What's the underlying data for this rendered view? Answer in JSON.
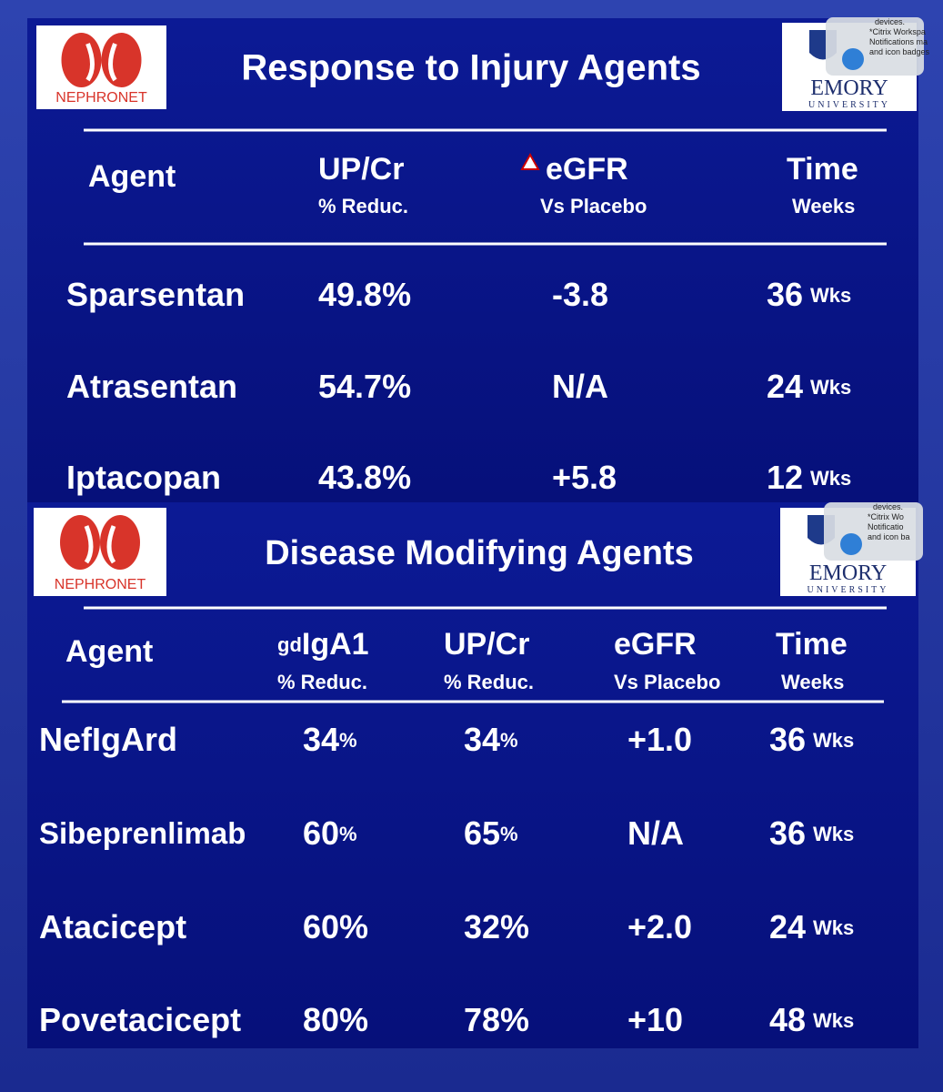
{
  "slides": [
    {
      "logo_left": "NEPHRONET",
      "logo_right": {
        "name": "EMORY",
        "sub": "UNIVERSITY"
      },
      "notification": [
        "devices.",
        "*Citrix Workspa",
        "Notifications ma",
        "and icon badges"
      ],
      "title": "Response to Injury Agents",
      "table": {
        "header": [
          {
            "main": "Agent"
          },
          {
            "main": "UP/Cr",
            "sub": "% Reduc."
          },
          {
            "main": "eGFR",
            "sub": "Vs Placebo"
          },
          {
            "main": "Time",
            "sub": "Weeks"
          }
        ],
        "rows": [
          [
            {
              "main": "Sparsentan"
            },
            {
              "main": "49.8%"
            },
            {
              "main": "-3.8"
            },
            {
              "main": "36",
              "small": "Wks"
            }
          ],
          [
            {
              "main": "Atrasentan"
            },
            {
              "main": "54.7%"
            },
            {
              "main": "N/A"
            },
            {
              "main": "24",
              "small": "Wks"
            }
          ],
          [
            {
              "main": "Iptacopan"
            },
            {
              "main": "43.8%"
            },
            {
              "main": "+5.8"
            },
            {
              "main": "12",
              "small": "Wks"
            }
          ]
        ]
      }
    },
    {
      "logo_left": "NEPHRONET",
      "logo_right": {
        "name": "EMORY",
        "sub": "UNIVERSITY"
      },
      "notification": [
        "devices.",
        "*Citrix Wo",
        "Notificatio",
        "and icon ba"
      ],
      "title": "Disease Modifying Agents",
      "table": {
        "header": [
          {
            "main": "Agent"
          },
          {
            "pre": "gd",
            "main": "IgA1",
            "sub": "% Reduc."
          },
          {
            "main": "UP/Cr",
            "sub": "% Reduc."
          },
          {
            "main": "eGFR",
            "sub": "Vs Placebo"
          },
          {
            "main": "Time",
            "sub": "Weeks"
          }
        ],
        "rows": [
          [
            {
              "main": "NefIgArd"
            },
            {
              "main": "34",
              "small": "%"
            },
            {
              "main": "34",
              "small": "%"
            },
            {
              "main": "+1.0"
            },
            {
              "main": "36",
              "small": "Wks"
            }
          ],
          [
            {
              "main": "Sibeprenlimab"
            },
            {
              "main": "60",
              "small": "%"
            },
            {
              "main": "65",
              "small": "%"
            },
            {
              "main": "N/A"
            },
            {
              "main": "36",
              "small": "Wks"
            }
          ],
          [
            {
              "main": "Atacicept"
            },
            {
              "main": "60%"
            },
            {
              "main": "32%"
            },
            {
              "main": "+2.0"
            },
            {
              "main": "24",
              "small": "Wks"
            }
          ],
          [
            {
              "main": "Povetacicept"
            },
            {
              "main": "80%"
            },
            {
              "main": "78%"
            },
            {
              "main": "+10"
            },
            {
              "main": "48",
              "small": "Wks"
            }
          ]
        ]
      }
    }
  ]
}
